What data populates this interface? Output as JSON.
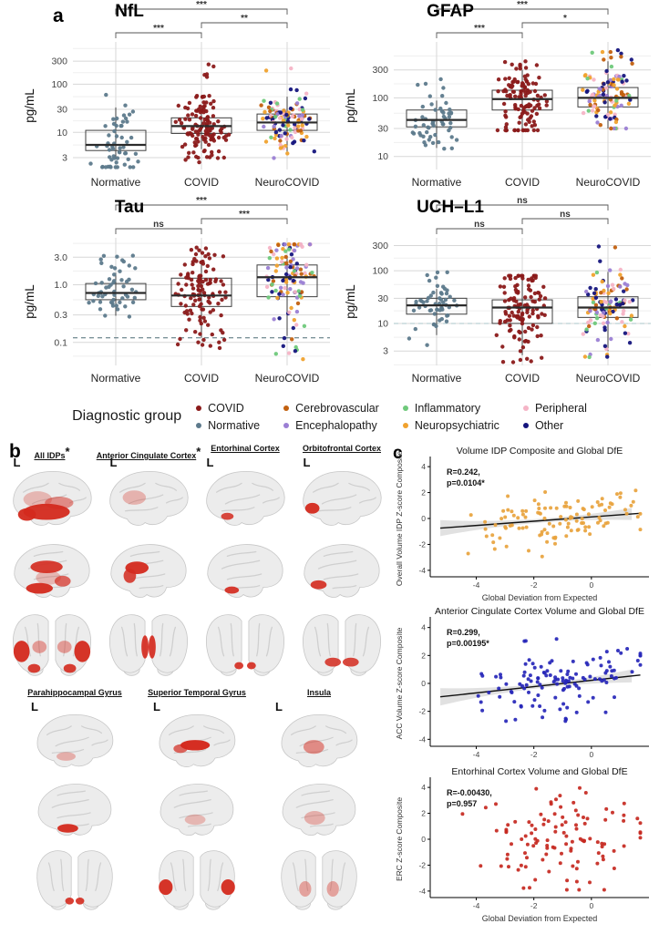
{
  "panel_a": {
    "label": "a"
  },
  "panel_b": {
    "label": "b",
    "hemisphere_label": "L",
    "rows": [
      [
        {
          "title": "All IDPs",
          "star": true,
          "regions": {
            "lateral": [
              [
                44,
                54,
                26,
                9,
                0.95
              ],
              [
                22,
                57,
                10,
                7,
                0.95
              ],
              [
                58,
                44,
                16,
                7,
                0.5
              ],
              [
                34,
                40,
                16,
                9,
                0.28
              ]
            ],
            "medial": [
              [
                44,
                34,
                18,
                7,
                0.9
              ],
              [
                36,
                58,
                15,
                6,
                0.95
              ],
              [
                62,
                50,
                9,
                6,
                0.7
              ],
              [
                46,
                46,
                14,
                8,
                0.28
              ]
            ],
            "frontal": [
              [
                16,
                47,
                9,
                12,
                0.95
              ],
              [
                84,
                47,
                9,
                12,
                0.95
              ],
              [
                36,
                42,
                8,
                7,
                0.42
              ],
              [
                64,
                42,
                8,
                7,
                0.42
              ],
              [
                30,
                66,
                7,
                5,
                0.9
              ],
              [
                70,
                66,
                7,
                5,
                0.9
              ]
            ]
          }
        },
        {
          "title": "Anterior Cingulate Cortex",
          "star": true,
          "regions": {
            "lateral": [
              [
                34,
                38,
                13,
                8,
                0.3
              ]
            ],
            "medial": [
              [
                37,
                35,
                13,
                7,
                0.95
              ],
              [
                29,
                44,
                7,
                8,
                0.85
              ]
            ],
            "frontal": [
              [
                46,
                42,
                4,
                13,
                0.92
              ],
              [
                54,
                42,
                4,
                13,
                0.92
              ]
            ]
          }
        },
        {
          "title": "Entorhinal Cortex",
          "star": false,
          "regions": {
            "lateral": [
              [
                30,
                59,
                7,
                4,
                0.85
              ]
            ],
            "medial": [
              [
                35,
                60,
                8,
                4,
                0.92
              ]
            ],
            "frontal": [
              [
                43,
                63,
                5,
                4,
                0.9
              ],
              [
                57,
                63,
                5,
                4,
                0.9
              ]
            ]
          }
        },
        {
          "title": "Orbitofrontal Cortex",
          "star": false,
          "regions": {
            "lateral": [
              [
                17,
                50,
                8,
                6,
                0.95
              ]
            ],
            "medial": [
              [
                24,
                54,
                9,
                5,
                0.9
              ]
            ],
            "frontal": [
              [
                40,
                59,
                9,
                5,
                0.85
              ],
              [
                60,
                59,
                9,
                5,
                0.85
              ]
            ]
          }
        }
      ],
      [
        {
          "title": "Parahippocampal Gyrus",
          "star": false,
          "regions": {
            "lateral": [
              [
                40,
                57,
                11,
                5,
                0.32
              ]
            ],
            "medial": [
              [
                42,
                60,
                12,
                5,
                0.95
              ]
            ],
            "frontal": [
              [
                44,
                64,
                5,
                4,
                0.9
              ],
              [
                56,
                64,
                5,
                4,
                0.9
              ]
            ]
          }
        },
        {
          "title": "Superior Temporal Gyrus",
          "star": false,
          "regions": {
            "lateral": [
              [
                48,
                44,
                17,
                6,
                0.98
              ],
              [
                31,
                48,
                8,
                5,
                0.7
              ]
            ],
            "medial": [
              [
                48,
                50,
                12,
                6,
                0.28
              ]
            ],
            "frontal": [
              [
                14,
                48,
                8,
                9,
                0.95
              ],
              [
                86,
                48,
                8,
                9,
                0.95
              ]
            ]
          }
        },
        {
          "title": "Insula",
          "star": false,
          "regions": {
            "lateral": [
              [
                44,
                46,
                12,
                8,
                0.5
              ]
            ],
            "medial": [
              [
                45,
                48,
                12,
                8,
                0.32
              ]
            ],
            "frontal": [
              [
                34,
                50,
                7,
                9,
                0.38
              ],
              [
                66,
                50,
                7,
                9,
                0.38
              ]
            ]
          }
        }
      ]
    ]
  },
  "panel_c": {
    "label": "c"
  },
  "legend": {
    "title": "Diagnostic group",
    "items": [
      {
        "label": "COVID",
        "color": "#8b1a1a"
      },
      {
        "label": "Normative",
        "color": "#5d7a8c"
      },
      {
        "label": "Cerebrovascular",
        "color": "#c2600f"
      },
      {
        "label": "Encephalopathy",
        "color": "#9b7fd4"
      },
      {
        "label": "Inflammatory",
        "color": "#6fc97b"
      },
      {
        "label": "Neuropsychiatric",
        "color": "#f0a22e"
      },
      {
        "label": "Peripheral",
        "color": "#f5b4c6"
      },
      {
        "label": "Other",
        "color": "#15157d"
      }
    ]
  },
  "colors": {
    "grid": "#d7d7d7",
    "grid_minor": "#efefef",
    "box": "#3f3f3f",
    "axis_text": "#444444",
    "covid": "#8b1a1a",
    "normative": "#5d7a8c",
    "region_red": "#d42a1e",
    "neuro_palette": [
      {
        "label": "Cerebrovascular",
        "color": "#c2600f",
        "w": 0.17
      },
      {
        "label": "Encephalopathy",
        "color": "#9b7fd4",
        "w": 0.13
      },
      {
        "label": "Inflammatory",
        "color": "#6fc97b",
        "w": 0.12
      },
      {
        "label": "Neuropsychiatric",
        "color": "#f0a22e",
        "w": 0.2
      },
      {
        "label": "Peripheral",
        "color": "#f5b4c6",
        "w": 0.16
      },
      {
        "label": "Other",
        "color": "#15157d",
        "w": 0.22
      }
    ]
  },
  "chart_data": {
    "biomarker_strip_plots": {
      "type": "box-jitter",
      "scale": "log10",
      "x_categories": [
        "Normative",
        "COVID",
        "NeuroCOVID"
      ],
      "ylabel": "pg/mL",
      "plots": [
        {
          "title": "NfL",
          "yticks": [
            "3",
            "10",
            "30",
            "100",
            "300"
          ],
          "ytick_values": [
            3,
            10,
            30,
            100,
            300
          ],
          "ylim": [
            1.7,
            750
          ],
          "dash": null,
          "dash_color": null,
          "sig": [
            {
              "from": 0,
              "to": 2,
              "label": "***",
              "tier": "top"
            },
            {
              "from": 1,
              "to": 2,
              "label": "**",
              "tier": "right"
            },
            {
              "from": 0,
              "to": 1,
              "label": "***",
              "tier": "left"
            }
          ],
          "groups": [
            {
              "name": "Normative",
              "n": 55,
              "q1": 4.2,
              "median": 5.5,
              "q3": 11,
              "wlo": 2.9,
              "whi": 33,
              "plo": 1.9,
              "phi": 110,
              "seed": 11,
              "palette": false
            },
            {
              "name": "COVID",
              "n": 125,
              "q1": 9.5,
              "median": 13.5,
              "q3": 20,
              "wlo": 4.5,
              "whi": 33,
              "plo": 2.4,
              "phi": 320,
              "seed": 12,
              "palette": false
            },
            {
              "name": "NeuroCOVID",
              "n": 125,
              "q1": 11,
              "median": 16,
              "q3": 24,
              "wlo": 4,
              "whi": 55,
              "plo": 2.8,
              "phi": 500,
              "seed": 13,
              "palette": true
            }
          ]
        },
        {
          "title": "GFAP",
          "yticks": [
            "10",
            "30",
            "100",
            "300"
          ],
          "ytick_values": [
            10,
            30,
            100,
            300
          ],
          "ylim": [
            6,
            900
          ],
          "dash": null,
          "dash_color": null,
          "sig": [
            {
              "from": 0,
              "to": 2,
              "label": "***",
              "tier": "top"
            },
            {
              "from": 1,
              "to": 2,
              "label": "*",
              "tier": "right"
            },
            {
              "from": 0,
              "to": 1,
              "label": "***",
              "tier": "left"
            }
          ],
          "groups": [
            {
              "name": "Normative",
              "n": 55,
              "q1": 32,
              "median": 42,
              "q3": 62,
              "wlo": 14,
              "whi": 90,
              "plo": 13,
              "phi": 280,
              "seed": 21,
              "palette": false
            },
            {
              "name": "COVID",
              "n": 120,
              "q1": 62,
              "median": 95,
              "q3": 135,
              "wlo": 28,
              "whi": 300,
              "plo": 28,
              "phi": 420,
              "seed": 22,
              "palette": false
            },
            {
              "name": "NeuroCOVID",
              "n": 120,
              "q1": 70,
              "median": 100,
              "q3": 150,
              "wlo": 30,
              "whi": 420,
              "plo": 30,
              "phi": 650,
              "seed": 23,
              "palette": true
            }
          ]
        },
        {
          "title": "Tau",
          "yticks": [
            "0.1",
            "0.3",
            "1.0",
            "3.0"
          ],
          "ytick_values": [
            0.1,
            0.3,
            1,
            3
          ],
          "ylim": [
            0.04,
            6.5
          ],
          "dash": 0.12,
          "dash_color": "#4d6b75",
          "sig": [
            {
              "from": 0,
              "to": 2,
              "label": "***",
              "tier": "top"
            },
            {
              "from": 1,
              "to": 2,
              "label": "***",
              "tier": "right"
            },
            {
              "from": 0,
              "to": 1,
              "label": "ns",
              "tier": "left"
            }
          ],
          "groups": [
            {
              "name": "Normative",
              "n": 55,
              "q1": 0.55,
              "median": 0.72,
              "q3": 1.05,
              "wlo": 0.29,
              "whi": 1.6,
              "plo": 0.28,
              "phi": 4.2,
              "seed": 31,
              "palette": false
            },
            {
              "name": "COVID",
              "n": 120,
              "q1": 0.42,
              "median": 0.65,
              "q3": 1.3,
              "wlo": 0.12,
              "whi": 2.4,
              "plo": 0.08,
              "phi": 4.4,
              "seed": 32,
              "palette": false
            },
            {
              "name": "NeuroCOVID",
              "n": 125,
              "q1": 0.62,
              "median": 1.35,
              "q3": 2.2,
              "wlo": 0.13,
              "whi": 3.2,
              "plo": 0.05,
              "phi": 5,
              "seed": 33,
              "palette": true
            }
          ]
        },
        {
          "title": "UCH–L1",
          "yticks": [
            "3",
            "10",
            "30",
            "100",
            "300"
          ],
          "ytick_values": [
            3,
            10,
            30,
            100,
            300
          ],
          "ylim": [
            1.6,
            420
          ],
          "dash": 10,
          "dash_color": "#a9c4c9",
          "sig": [
            {
              "from": 0,
              "to": 2,
              "label": "ns",
              "tier": "top"
            },
            {
              "from": 1,
              "to": 2,
              "label": "ns",
              "tier": "right"
            },
            {
              "from": 0,
              "to": 1,
              "label": "ns",
              "tier": "left"
            }
          ],
          "groups": [
            {
              "name": "Normative",
              "n": 55,
              "q1": 15,
              "median": 22,
              "q3": 30,
              "wlo": 6,
              "whi": 45,
              "plo": 2.1,
              "phi": 95,
              "seed": 41,
              "palette": false
            },
            {
              "name": "COVID",
              "n": 120,
              "q1": 10,
              "median": 20,
              "q3": 28,
              "wlo": 2.5,
              "whi": 70,
              "plo": 1.8,
              "phi": 80,
              "seed": 42,
              "palette": false
            },
            {
              "name": "NeuroCOVID",
              "n": 120,
              "q1": 13,
              "median": 20,
              "q3": 32,
              "wlo": 3,
              "whi": 95,
              "plo": 2.3,
              "phi": 290,
              "seed": 43,
              "palette": true
            }
          ]
        }
      ]
    },
    "dfe_scatter_plots": {
      "type": "scatter",
      "plots": [
        {
          "title": "Volume IDP Composite and Global DfE",
          "ylab": "Overall Volume IDP Z-score Composite",
          "xlab": "Global Deviation from Expected",
          "r_label": "R=0.242,",
          "p_label": "p=0.0104*",
          "R": 0.242,
          "p": "0.0104*",
          "color": "#e8a33d",
          "n": 110,
          "seed": 101,
          "slope": 0.165,
          "intercept": 0.12,
          "noise": 0.95,
          "has_line": true,
          "xlim": [
            -5.6,
            2.0
          ],
          "ylim": [
            -4.5,
            4.5
          ],
          "yclip": [
            -3.5,
            3.2
          ],
          "xticks": [
            -4,
            -2,
            0
          ],
          "yticks": [
            -4,
            -2,
            0,
            2,
            4
          ]
        },
        {
          "title": "Anterior Cingulate Cortex Volume and Global DfE",
          "ylab": "ACC Volume Z-score Composite",
          "xlab": "",
          "r_label": "R=0.299,",
          "p_label": "p=0.00195*",
          "R": 0.299,
          "p": "0.00195*",
          "color": "#2626b8",
          "n": 125,
          "seed": 102,
          "slope": 0.225,
          "intercept": 0.22,
          "noise": 1.15,
          "has_line": true,
          "xlim": [
            -5.6,
            2.0
          ],
          "ylim": [
            -4.5,
            4.5
          ],
          "yclip": [
            -2.7,
            3.5
          ],
          "xticks": [
            -4,
            -2,
            0
          ],
          "yticks": [
            -4,
            -2,
            0,
            2,
            4
          ]
        },
        {
          "title": "Entorhinal Cortex Volume and Global DfE",
          "ylab": "ERC Z-score Composite",
          "xlab": "Global Deviation from Expected",
          "r_label": "R=-0.00430,",
          "p_label": "p=0.957",
          "R": -0.0043,
          "p": "0.957",
          "color": "#c62820",
          "n": 112,
          "seed": 103,
          "slope": 0,
          "intercept": 0,
          "noise": 1.85,
          "has_line": false,
          "xlim": [
            -5.6,
            2.0
          ],
          "ylim": [
            -4.5,
            4.5
          ],
          "yclip": [
            -3.9,
            3.95
          ],
          "xticks": [
            -4,
            -2,
            0
          ],
          "yticks": [
            -4,
            -2,
            0,
            2,
            4
          ]
        }
      ]
    }
  }
}
